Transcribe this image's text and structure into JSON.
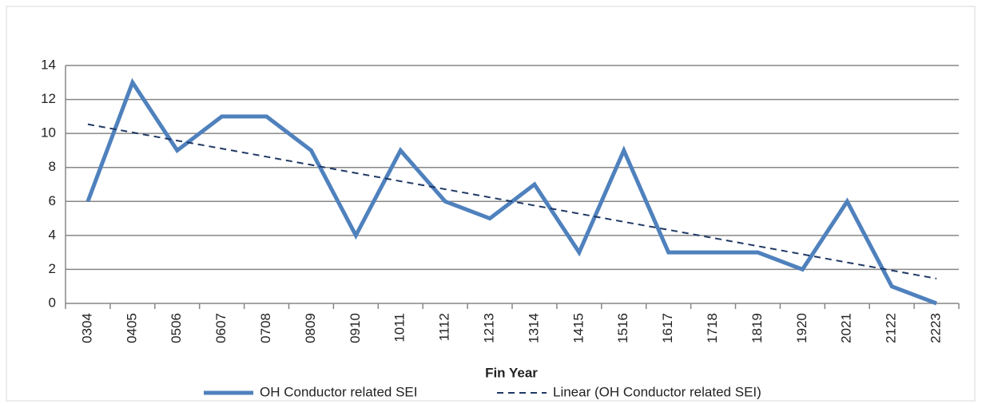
{
  "chart_data": {
    "type": "line",
    "x_label": "Fin Year",
    "categories": [
      "0304",
      "0405",
      "0506",
      "0607",
      "0708",
      "0809",
      "0910",
      "1011",
      "1112",
      "1213",
      "1314",
      "1415",
      "1516",
      "1617",
      "1718",
      "1819",
      "1920",
      "2021",
      "2122",
      "2223"
    ],
    "series": [
      {
        "name": "OH Conductor related SEI",
        "color": "#4f81bd",
        "style": "solid",
        "values": [
          6,
          13,
          9,
          11,
          11,
          9,
          4,
          9,
          6,
          5,
          7,
          3,
          9,
          3,
          3,
          3,
          2,
          6,
          1,
          0
        ]
      },
      {
        "name": "Linear (OH Conductor related SEI)",
        "color": "#1f3864",
        "style": "dashed",
        "values": [
          10.54,
          10.06,
          9.58,
          9.11,
          8.63,
          8.15,
          7.67,
          7.19,
          6.72,
          6.24,
          5.76,
          5.28,
          4.8,
          4.33,
          3.85,
          3.37,
          2.89,
          2.41,
          1.94,
          1.46
        ]
      }
    ],
    "ylim": [
      0,
      14
    ],
    "yticks": [
      0,
      2,
      4,
      6,
      8,
      10,
      12,
      14
    ],
    "grid": true,
    "legend": "bottom"
  }
}
